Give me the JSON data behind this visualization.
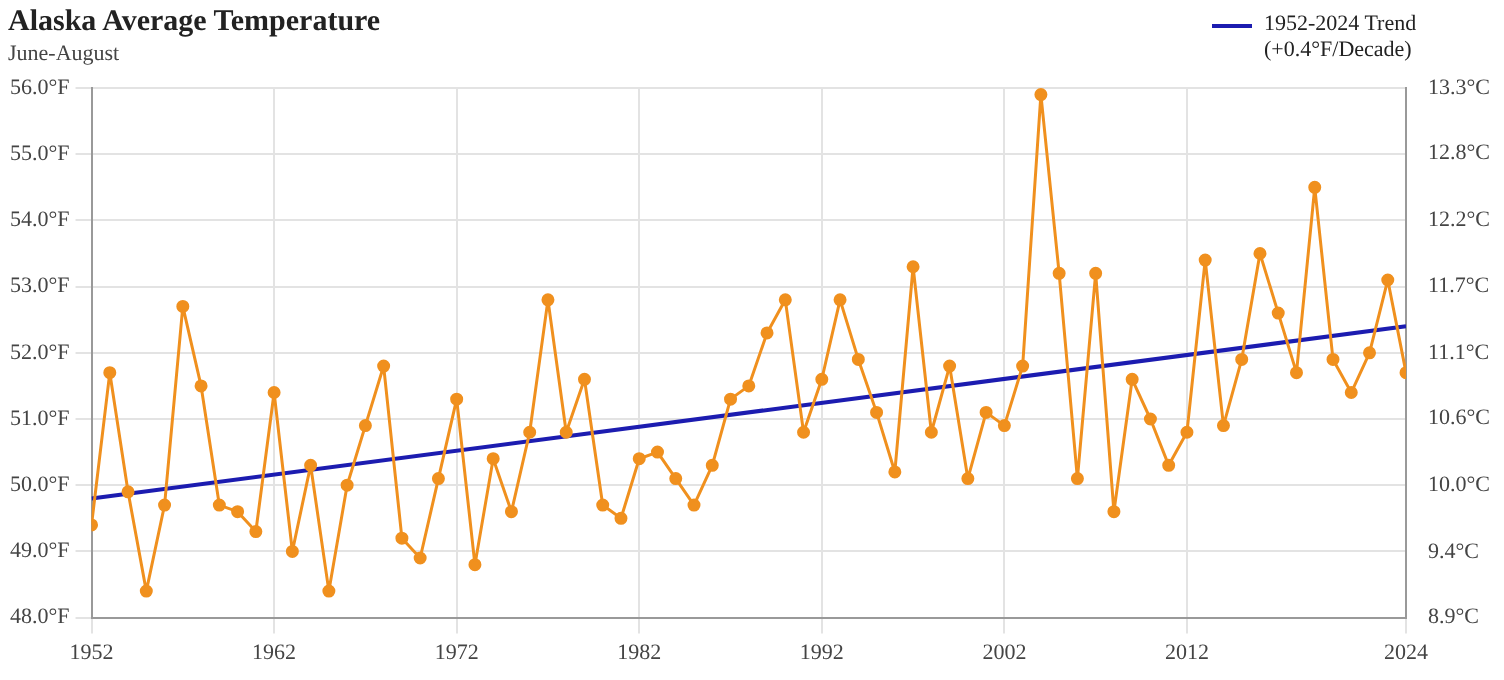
{
  "chart_data": {
    "type": "line",
    "title": "Alaska Average Temperature",
    "subtitle": "June-August",
    "x": [
      1952,
      1953,
      1954,
      1955,
      1956,
      1957,
      1958,
      1959,
      1960,
      1961,
      1962,
      1963,
      1964,
      1965,
      1966,
      1967,
      1968,
      1969,
      1970,
      1971,
      1972,
      1973,
      1974,
      1975,
      1976,
      1977,
      1978,
      1979,
      1980,
      1981,
      1982,
      1983,
      1984,
      1985,
      1986,
      1987,
      1988,
      1989,
      1990,
      1991,
      1992,
      1993,
      1994,
      1995,
      1996,
      1997,
      1998,
      1999,
      2000,
      2001,
      2002,
      2003,
      2004,
      2005,
      2006,
      2007,
      2008,
      2009,
      2010,
      2011,
      2012,
      2013,
      2014,
      2015,
      2016,
      2017,
      2018,
      2019,
      2020,
      2021,
      2022,
      2023,
      2024
    ],
    "series": [
      {
        "color": "#f0901e",
        "marker": "circle",
        "values": [
          49.4,
          51.7,
          49.9,
          48.4,
          49.7,
          52.7,
          51.5,
          49.7,
          49.6,
          49.3,
          51.4,
          49.0,
          50.3,
          48.4,
          50.0,
          50.9,
          51.8,
          49.2,
          48.9,
          50.1,
          51.3,
          48.8,
          50.4,
          49.6,
          50.8,
          52.8,
          50.8,
          51.6,
          49.7,
          49.5,
          50.4,
          50.5,
          50.1,
          49.7,
          50.3,
          51.3,
          51.5,
          52.3,
          52.8,
          50.8,
          51.6,
          52.8,
          51.9,
          51.1,
          50.2,
          53.3,
          50.8,
          51.8,
          50.1,
          51.1,
          50.9,
          51.8,
          55.9,
          53.2,
          50.1,
          53.2,
          49.6,
          51.6,
          51.0,
          50.3,
          50.8,
          53.4,
          50.9,
          51.9,
          53.5,
          52.6,
          51.7,
          54.5,
          51.9,
          51.4,
          52.0,
          53.1,
          51.7
        ]
      },
      {
        "name": "1952-2024 Trend (+0.4°F/Decade)",
        "color": "#1c1cb0",
        "marker": "none",
        "x": [
          1952,
          2024
        ],
        "values": [
          49.8,
          52.4
        ]
      }
    ],
    "xlim": [
      1952,
      2024
    ],
    "xticks": [
      1952,
      1962,
      1972,
      1982,
      1992,
      2002,
      2012,
      2024
    ],
    "ylim": [
      48,
      56
    ],
    "yticks": [
      {
        "value": 48,
        "label": "48.0°F"
      },
      {
        "value": 49,
        "label": "49.0°F"
      },
      {
        "value": 50,
        "label": "50.0°F"
      },
      {
        "value": 51,
        "label": "51.0°F"
      },
      {
        "value": 52,
        "label": "52.0°F"
      },
      {
        "value": 53,
        "label": "53.0°F"
      },
      {
        "value": 54,
        "label": "54.0°F"
      },
      {
        "value": 55,
        "label": "55.0°F"
      },
      {
        "value": 56,
        "label": "56.0°F"
      }
    ],
    "y2lim": [
      8.89,
      13.33
    ],
    "y2ticks": [
      {
        "value": 8.89,
        "label": "8.9°C"
      },
      {
        "value": 9.44,
        "label": "9.4°C"
      },
      {
        "value": 10.0,
        "label": "10.0°C"
      },
      {
        "value": 10.56,
        "label": "10.6°C"
      },
      {
        "value": 11.11,
        "label": "11.1°C"
      },
      {
        "value": 11.67,
        "label": "11.7°C"
      },
      {
        "value": 12.22,
        "label": "12.2°C"
      },
      {
        "value": 12.78,
        "label": "12.8°C"
      },
      {
        "value": 13.33,
        "label": "13.3°C"
      }
    ],
    "grid": true,
    "legend": "top right"
  }
}
